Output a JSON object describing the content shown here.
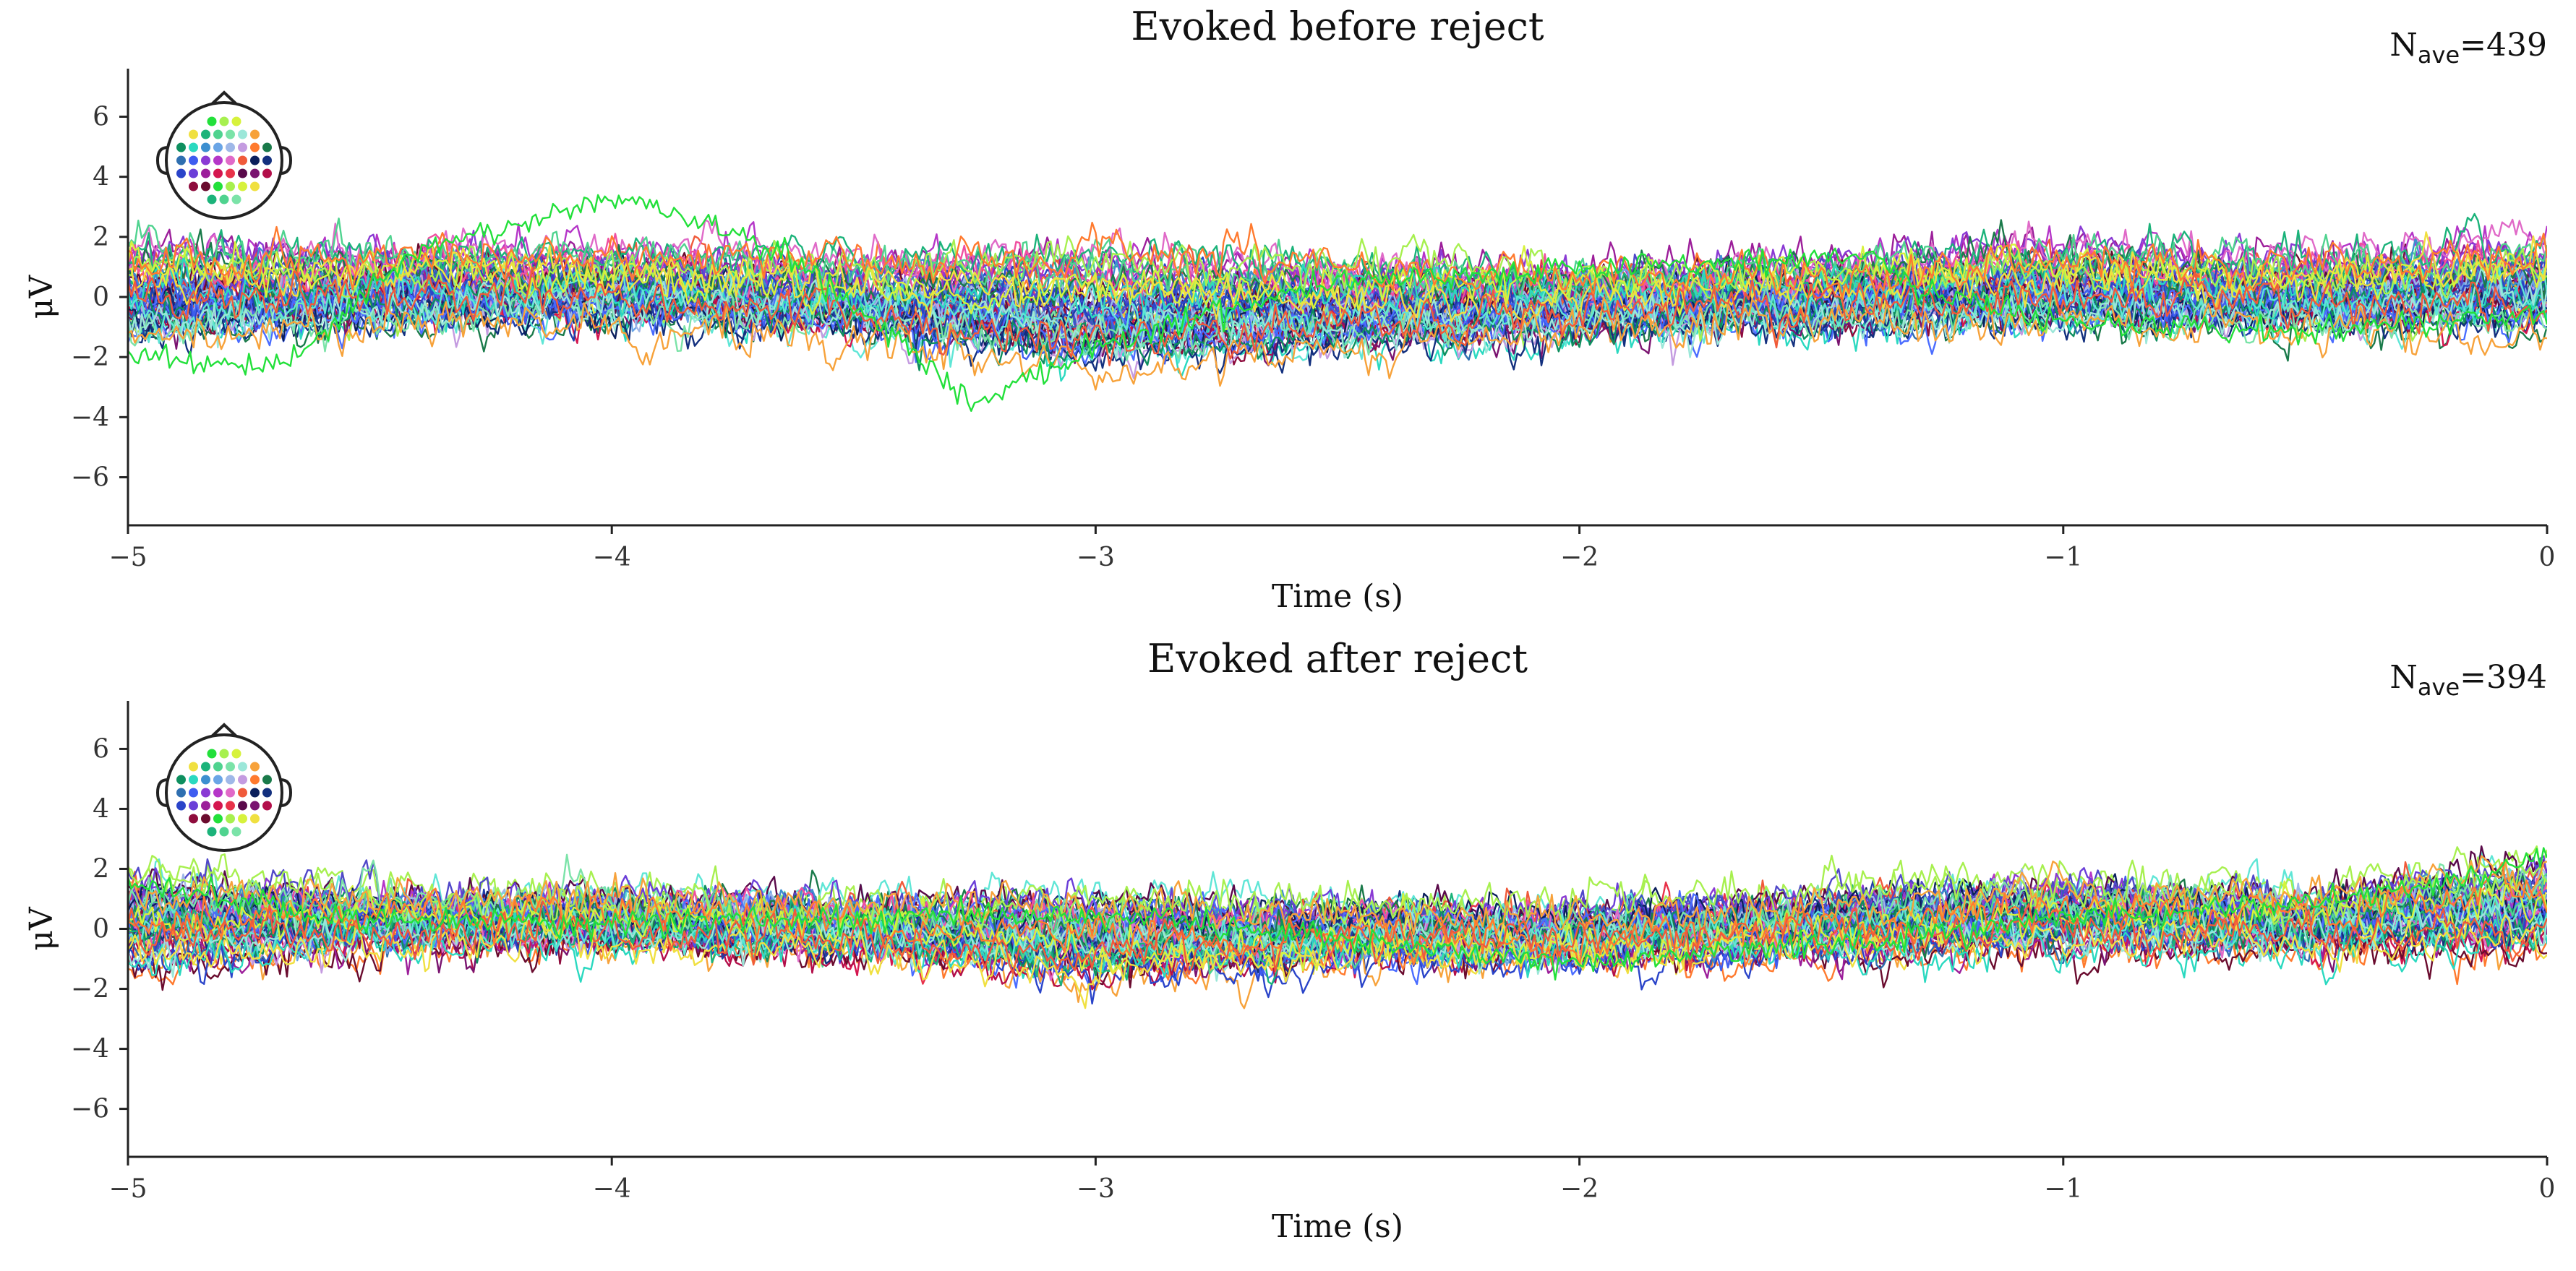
{
  "chart_data": [
    {
      "type": "line",
      "title": "Evoked before reject",
      "nave_prefix": "N",
      "nave_sub": "ave",
      "nave_suffix": "=439",
      "xlabel": "Time (s)",
      "ylabel": "μV",
      "xlim": [
        -5,
        0
      ],
      "ylim": [
        -7.6,
        7.6
      ],
      "xticks": [
        -5,
        -4,
        -3,
        -2,
        -1,
        0
      ],
      "xtick_labels": [
        "−5",
        "−4",
        "−3",
        "−2",
        "−1",
        "0"
      ],
      "yticks": [
        6,
        4,
        2,
        0,
        -2,
        -4,
        -6
      ],
      "ytick_labels": [
        "6",
        "4",
        "2",
        "0",
        "−2",
        "−4",
        "−6"
      ],
      "n_channels": 60,
      "legend": "sensor-topomap top-left",
      "series_envelope": {
        "x": [
          -5,
          -4.5,
          -4,
          -3.5,
          -3,
          -2.5,
          -2,
          -1.5,
          -1,
          -0.5,
          0
        ],
        "typical_range": [
          [
            -1.5,
            1.8
          ],
          [
            -1.0,
            1.6
          ],
          [
            -0.8,
            1.5
          ],
          [
            -1.2,
            1.2
          ],
          [
            -2.4,
            1.6
          ],
          [
            -1.8,
            1.2
          ],
          [
            -1.2,
            0.9
          ],
          [
            -1.0,
            1.2
          ],
          [
            -1.0,
            1.8
          ],
          [
            -1.0,
            1.2
          ],
          [
            -1.0,
            1.8
          ]
        ],
        "outlier_series": {
          "color": "#22e03a",
          "points": [
            [
              -5,
              -1.8
            ],
            [
              -4.7,
              -2.5
            ],
            [
              -4.4,
              1.5
            ],
            [
              -4.0,
              3.3
            ],
            [
              -3.8,
              2.5
            ],
            [
              -3.6,
              1.0
            ],
            [
              -3.4,
              -1.5
            ],
            [
              -3.25,
              -3.6
            ],
            [
              -3.0,
              -1.6
            ],
            [
              -2.5,
              0.6
            ],
            [
              -2.0,
              0.9
            ],
            [
              -1.6,
              1.2
            ],
            [
              -1.4,
              1.5
            ],
            [
              -1.3,
              0.2
            ],
            [
              -1.0,
              -0.8
            ],
            [
              -0.5,
              -1.2
            ],
            [
              0,
              -0.5
            ]
          ]
        }
      }
    },
    {
      "type": "line",
      "title": "Evoked after reject",
      "nave_prefix": "N",
      "nave_sub": "ave",
      "nave_suffix": "=394",
      "xlabel": "Time (s)",
      "ylabel": "μV",
      "xlim": [
        -5,
        0
      ],
      "ylim": [
        -7.6,
        7.6
      ],
      "xticks": [
        -5,
        -4,
        -3,
        -2,
        -1,
        0
      ],
      "xtick_labels": [
        "−5",
        "−4",
        "−3",
        "−2",
        "−1",
        "0"
      ],
      "yticks": [
        6,
        4,
        2,
        0,
        -2,
        -4,
        -6
      ],
      "ytick_labels": [
        "6",
        "4",
        "2",
        "0",
        "−2",
        "−4",
        "−6"
      ],
      "n_channels": 60,
      "legend": "sensor-topomap top-left",
      "series_envelope": {
        "x": [
          -5,
          -4.5,
          -4,
          -3.5,
          -3,
          -2.5,
          -2,
          -1.5,
          -1,
          -0.5,
          0
        ],
        "typical_range": [
          [
            -1.8,
            2.2
          ],
          [
            -0.8,
            1.4
          ],
          [
            -0.6,
            1.2
          ],
          [
            -1.0,
            1.0
          ],
          [
            -2.2,
            1.2
          ],
          [
            -1.4,
            0.9
          ],
          [
            -1.4,
            0.8
          ],
          [
            -1.2,
            1.4
          ],
          [
            -0.9,
            1.9
          ],
          [
            -0.8,
            1.3
          ],
          [
            -1.0,
            2.6
          ]
        ],
        "outlier_series": {
          "color": "#22e03a",
          "points": [
            [
              -5,
              1.6
            ],
            [
              -4.5,
              0.3
            ],
            [
              -4,
              0.2
            ],
            [
              -3,
              0.5
            ],
            [
              -2,
              -1.2
            ],
            [
              -1.5,
              -0.5
            ],
            [
              -1,
              0.3
            ],
            [
              -0.5,
              0.8
            ],
            [
              -0.2,
              1.6
            ],
            [
              0,
              2.5
            ]
          ]
        }
      }
    }
  ],
  "colors": {
    "palette": [
      "#0b1f5c",
      "#13307e",
      "#1f3ea8",
      "#2a44c9",
      "#3e5cf0",
      "#4a6cff",
      "#1a7a4a",
      "#0e8f5f",
      "#1bb37a",
      "#4fd38f",
      "#7be3a8",
      "#2ad9c0",
      "#5fe6d6",
      "#9be7d9",
      "#a7f04f",
      "#d7f23c",
      "#f0e040",
      "#f7a23a",
      "#ff7a2e",
      "#f05a3a",
      "#e8324a",
      "#d4164f",
      "#b30f4a",
      "#8e0c3d",
      "#6a0b2e",
      "#5a0a4a",
      "#7a1470",
      "#9c1e9a",
      "#b536c8",
      "#8a3ad4",
      "#6b3fd8",
      "#5048c9",
      "#3a57c2",
      "#2f6fb0",
      "#3c8fd0",
      "#6aa5e6",
      "#9fb8e8",
      "#c49be0",
      "#e06ac8",
      "#f04fa0"
    ]
  }
}
